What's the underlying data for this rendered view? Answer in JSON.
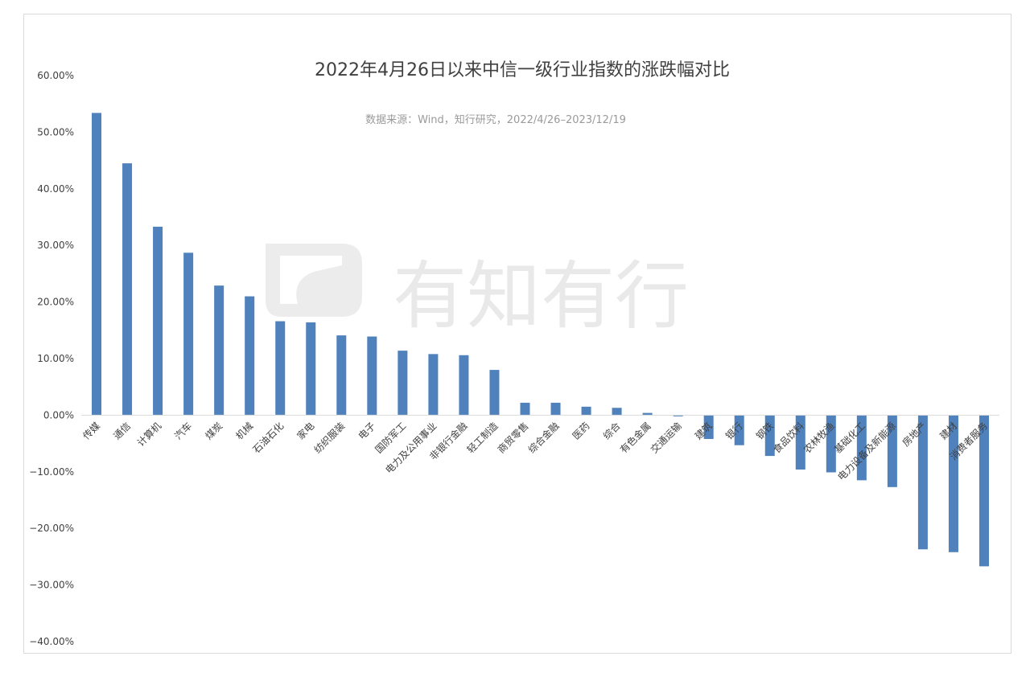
{
  "chart_data": {
    "type": "bar",
    "title": "2022年4月26日以来中信一级行业指数的涨跌幅对比",
    "subtitle": "数据来源：Wind，知行研究，2022/4/26–2023/12/19",
    "watermark": "有知有行",
    "ylim": [
      -40,
      60
    ],
    "yticks": [
      60,
      50,
      40,
      30,
      20,
      10,
      0,
      -10,
      -20,
      -30,
      -40
    ],
    "ytick_labels": [
      "60.00%",
      "50.00%",
      "40.00%",
      "30.00%",
      "20.00%",
      "10.00%",
      "0.00%",
      "−10.00%",
      "−20.00%",
      "−30.00%",
      "−40.00%"
    ],
    "bar_color": "#4f81bd",
    "categories": [
      "传媒",
      "通信",
      "计算机",
      "汽车",
      "煤炭",
      "机械",
      "石油石化",
      "家电",
      "纺织服装",
      "电子",
      "国防军工",
      "电力及公用事业",
      "非银行金融",
      "轻工制造",
      "商贸零售",
      "综合金融",
      "医药",
      "综合",
      "有色金属",
      "交通运输",
      "建筑",
      "银行",
      "钢铁",
      "食品饮料",
      "农林牧渔",
      "基础化工",
      "电力设备及新能源",
      "房地产",
      "建材",
      "消费者服务"
    ],
    "values": [
      53.4,
      44.5,
      33.3,
      28.7,
      22.9,
      21.0,
      16.6,
      16.4,
      14.1,
      13.9,
      11.4,
      10.8,
      10.6,
      8.0,
      2.2,
      2.2,
      1.5,
      1.3,
      0.4,
      -0.2,
      -4.2,
      -5.3,
      -7.2,
      -9.6,
      -10.1,
      -11.5,
      -12.7,
      -23.7,
      -24.2,
      -26.7
    ]
  }
}
